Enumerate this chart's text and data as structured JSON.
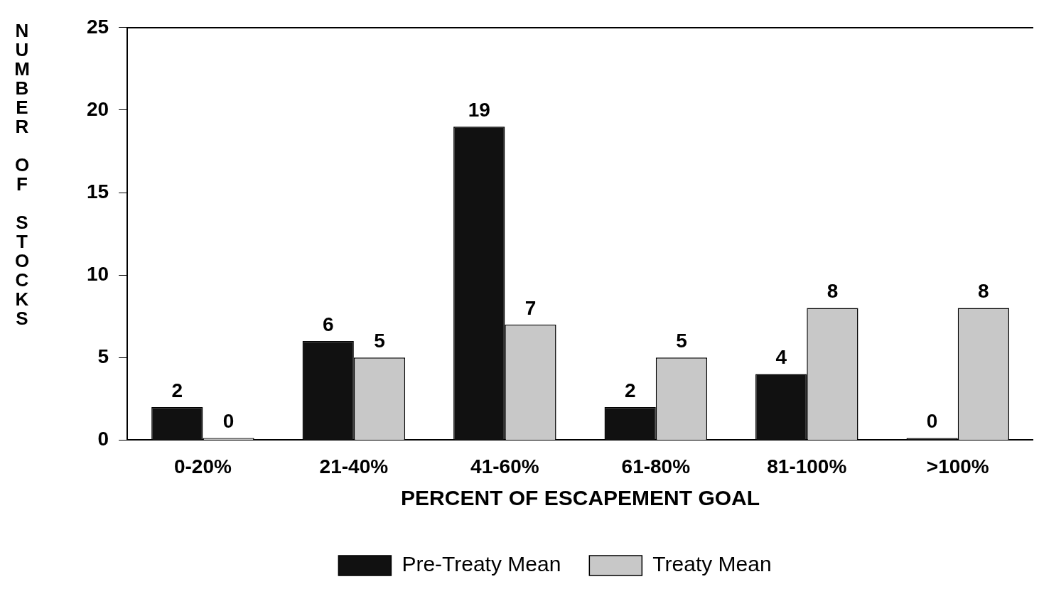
{
  "chart_data": {
    "type": "bar",
    "xlabel": "PERCENT OF ESCAPEMENT GOAL",
    "ylabel": "NUMBER OF STOCKS",
    "categories": [
      "0-20%",
      "21-40%",
      "41-60%",
      "61-80%",
      "81-100%",
      ">100%"
    ],
    "series": [
      {
        "name": "Pre-Treaty Mean",
        "color": "#111111",
        "values": [
          2,
          6,
          19,
          2,
          4,
          0
        ]
      },
      {
        "name": "Treaty Mean",
        "color": "#c8c8c8",
        "values": [
          0,
          5,
          7,
          5,
          8,
          8
        ]
      }
    ],
    "ylim": [
      0,
      25
    ],
    "yticks": [
      0,
      5,
      10,
      15,
      20,
      25
    ],
    "grid": false,
    "legend": "bottom",
    "data_labels": true
  }
}
